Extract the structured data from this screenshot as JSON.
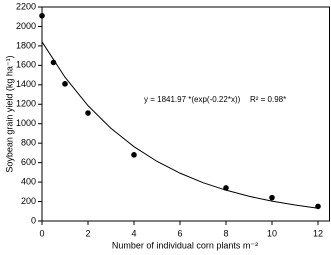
{
  "chart_data": {
    "type": "scatter",
    "x_label": "Number of individual corn plants m⁻²",
    "y_label": "Soybean grain yield (kg ha⁻¹)",
    "annotations": [
      "y = 1841.97 *(exp(-0.22*x))",
      "R² = 0.98*"
    ],
    "xlim": [
      0,
      12.5
    ],
    "ylim": [
      0,
      2200
    ],
    "xticks": [
      0,
      2,
      4,
      6,
      8,
      10,
      12
    ],
    "yticks": [
      0,
      200,
      400,
      600,
      800,
      1000,
      1200,
      1400,
      1600,
      1800,
      2000,
      2200
    ],
    "series": [
      {
        "type": "scatter",
        "color": "#000000",
        "x": [
          0,
          0.5,
          1,
          2,
          4,
          8,
          10,
          12
        ],
        "values": [
          2110,
          1630,
          1410,
          1110,
          680,
          340,
          240,
          150
        ]
      },
      {
        "type": "line",
        "color": "#000000",
        "x": [
          0,
          1,
          2,
          3,
          4,
          5,
          6,
          7,
          8,
          9,
          10,
          11,
          12
        ],
        "values": [
          1842,
          1478,
          1186,
          952,
          764,
          613,
          492,
          394,
          317,
          254,
          204,
          164,
          131
        ]
      }
    ]
  }
}
